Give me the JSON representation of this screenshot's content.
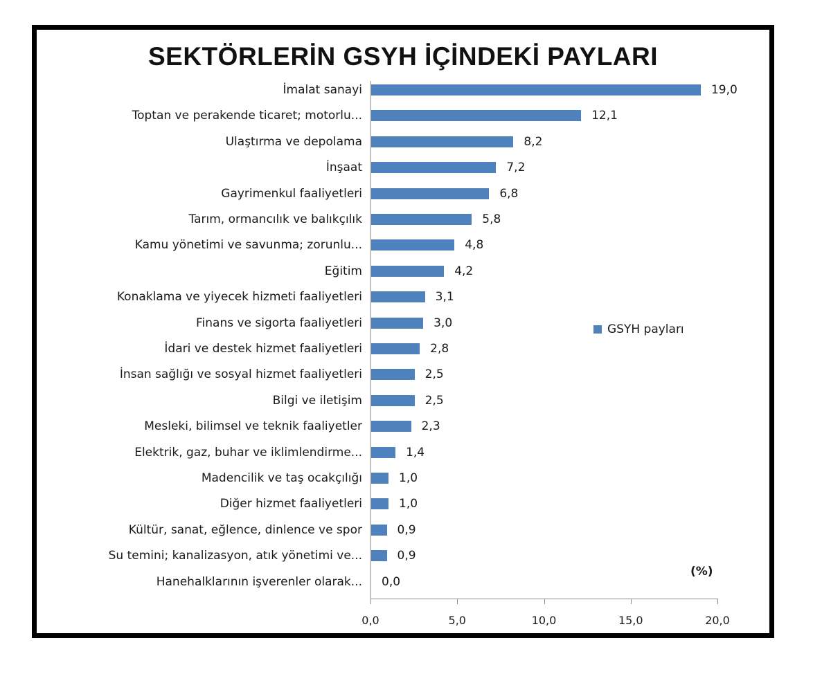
{
  "chart_data": {
    "type": "bar",
    "orientation": "horizontal",
    "title": "SEKTÖRLERİN GSYH İÇİNDEKİ PAYLARI",
    "xlabel": "",
    "ylabel": "",
    "unit_label": "(%)",
    "xlim": [
      0,
      20
    ],
    "x_ticks": [
      "0,0",
      "5,0",
      "10,0",
      "15,0",
      "20,0"
    ],
    "grid": false,
    "legend": {
      "position": "right",
      "entries": [
        "GSYH payları"
      ]
    },
    "series_color": "#4f81bd",
    "categories": [
      "İmalat sanayi",
      "Toptan ve perakende ticaret; motorlu...",
      "Ulaştırma ve depolama",
      "İnşaat",
      "Gayrimenkul faaliyetleri",
      "Tarım, ormancılık ve balıkçılık",
      "Kamu yönetimi ve savunma; zorunlu...",
      "Eğitim",
      "Konaklama ve yiyecek hizmeti faaliyetleri",
      "Finans ve sigorta faaliyetleri",
      "İdari ve destek hizmet faaliyetleri",
      "İnsan sağlığı ve sosyal hizmet faaliyetleri",
      "Bilgi ve iletişim",
      "Mesleki, bilimsel ve teknik faaliyetler",
      "Elektrik, gaz, buhar ve iklimlendirme...",
      "Madencilik ve taş ocakçılığı",
      "Diğer hizmet faaliyetleri",
      "Kültür, sanat, eğlence, dinlence ve spor",
      "Su temini; kanalizasyon, atık yönetimi ve...",
      "Hanehalklarının işverenler olarak..."
    ],
    "series": [
      {
        "name": "GSYH payları",
        "values": [
          19.0,
          12.1,
          8.2,
          7.2,
          6.8,
          5.8,
          4.8,
          4.2,
          3.1,
          3.0,
          2.8,
          2.5,
          2.5,
          2.3,
          1.4,
          1.0,
          1.0,
          0.9,
          0.9,
          0.0
        ],
        "value_labels": [
          "19,0",
          "12,1",
          "8,2",
          "7,2",
          "6,8",
          "5,8",
          "4,8",
          "4,2",
          "3,1",
          "3,0",
          "2,8",
          "2,5",
          "2,5",
          "2,3",
          "1,4",
          "1,0",
          "1,0",
          "0,9",
          "0,9",
          "0,0"
        ]
      }
    ]
  }
}
